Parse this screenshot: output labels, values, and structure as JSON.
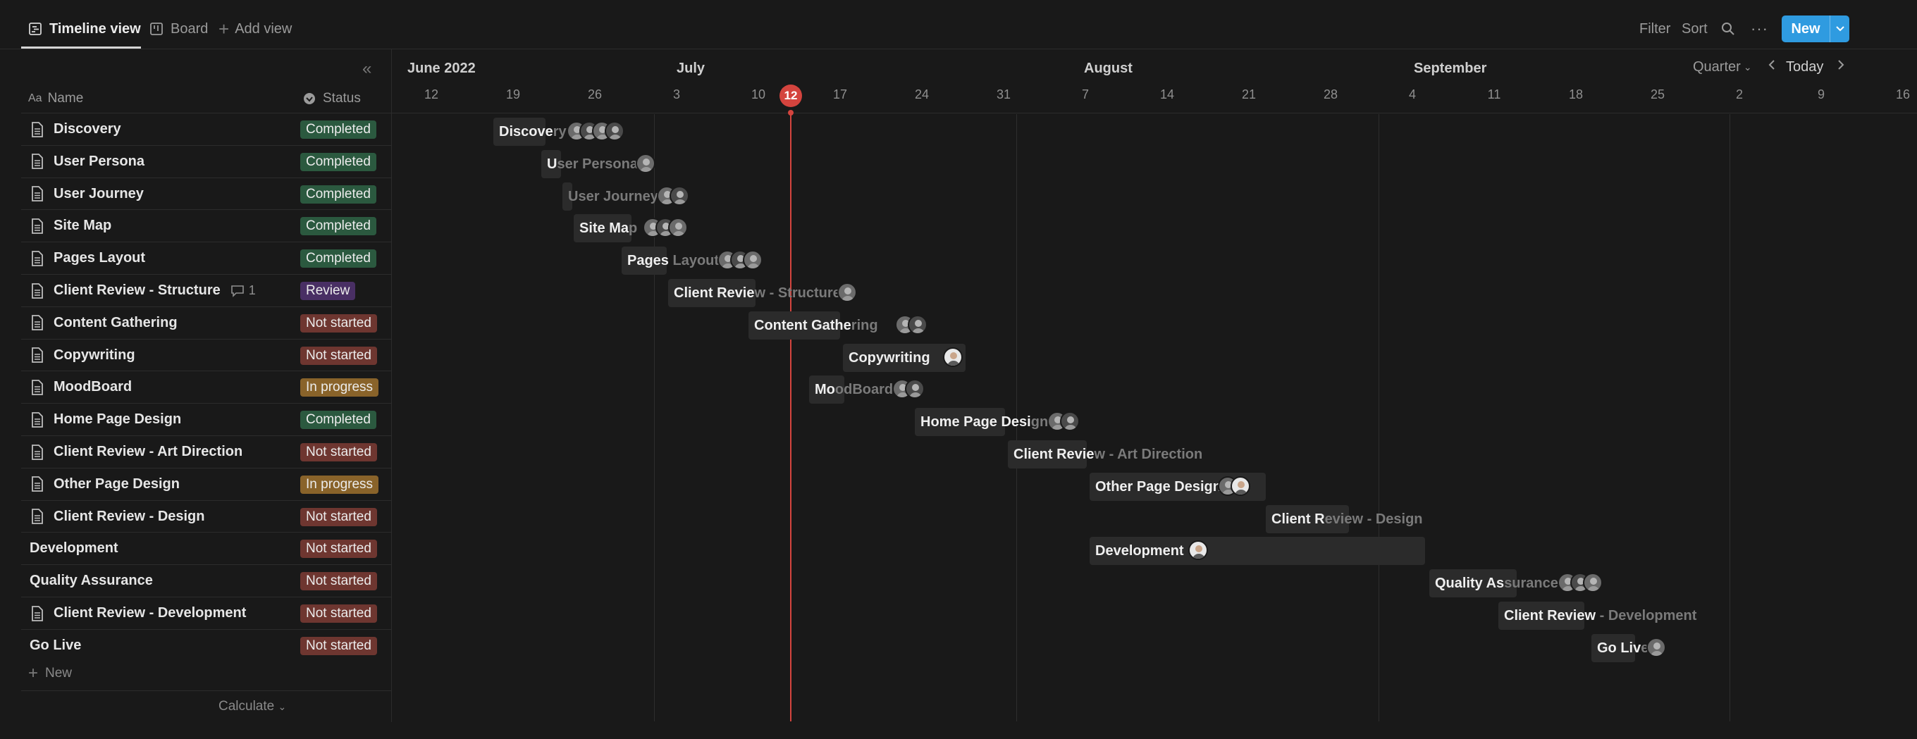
{
  "views": {
    "timeline": "Timeline view",
    "board": "Board",
    "add": "Add view"
  },
  "toolbar": {
    "filter": "Filter",
    "sort": "Sort",
    "new": "New"
  },
  "columns": {
    "name": "Name",
    "status": "Status"
  },
  "rows": [
    {
      "name": "Discovery",
      "status": "Completed",
      "doc": true
    },
    {
      "name": "User Persona",
      "status": "Completed",
      "doc": true
    },
    {
      "name": "User Journey",
      "status": "Completed",
      "doc": true
    },
    {
      "name": "Site Map",
      "status": "Completed",
      "doc": true
    },
    {
      "name": "Pages Layout",
      "status": "Completed",
      "doc": true
    },
    {
      "name": "Client Review - Structure",
      "status": "Review",
      "doc": true,
      "comments": "1"
    },
    {
      "name": "Content Gathering",
      "status": "Not started",
      "doc": true
    },
    {
      "name": "Copywriting",
      "status": "Not started",
      "doc": true
    },
    {
      "name": "MoodBoard",
      "status": "In progress",
      "doc": true
    },
    {
      "name": "Home Page Design",
      "status": "Completed",
      "doc": true
    },
    {
      "name": "Client Review - Art Direction",
      "status": "Not started",
      "doc": true
    },
    {
      "name": "Other Page Design",
      "status": "In progress",
      "doc": true
    },
    {
      "name": "Client Review - Design",
      "status": "Not started",
      "doc": true
    },
    {
      "name": "Development",
      "status": "Not started",
      "doc": false
    },
    {
      "name": "Quality Assurance",
      "status": "Not started",
      "doc": false
    },
    {
      "name": "Client Review - Development",
      "status": "Not started",
      "doc": true
    },
    {
      "name": "Go Live",
      "status": "Not started",
      "doc": false
    }
  ],
  "footer": {
    "new": "New",
    "calculate": "Calculate"
  },
  "timeline": {
    "months": [
      "June 2022",
      "July",
      "August",
      "September"
    ],
    "days": [
      "12",
      "19",
      "26",
      "3",
      "10",
      "12",
      "17",
      "24",
      "31",
      "7",
      "14",
      "21",
      "28",
      "4",
      "11",
      "18",
      "25",
      "2",
      "9",
      "16"
    ],
    "today_day": "12",
    "zoom": "Quarter",
    "today_label": "Today",
    "bars": [
      {
        "label_a": "Discove",
        "label_b": "ry",
        "avatars": 4
      },
      {
        "label_a": "U",
        "label_b": "ser Persona",
        "avatars": 1
      },
      {
        "label_a": "",
        "label_b": "User Journey",
        "avatars": 2
      },
      {
        "label_a": "Site Ma",
        "label_b": "p",
        "avatars": 3
      },
      {
        "label_a": "Pages ",
        "label_b": "Layout",
        "avatars": 3
      },
      {
        "label_a": "Client Revie",
        "label_b": "w - Structure",
        "avatars": 1
      },
      {
        "label_a": "Content Gathe",
        "label_b": "ring",
        "avatars": 2
      },
      {
        "label_a": "Copywriting",
        "label_b": "",
        "avatars": 1
      },
      {
        "label_a": "Mo",
        "label_b": "odBoard",
        "avatars": 2
      },
      {
        "label_a": "Home Page Desi",
        "label_b": "gn",
        "avatars": 2
      },
      {
        "label_a": "Client Revie",
        "label_b": "w - Art Direction",
        "avatars": 0
      },
      {
        "label_a": "Other Page Design",
        "label_b": "",
        "avatars": 2
      },
      {
        "label_a": "Client R",
        "label_b": "eview - Design",
        "avatars": 0
      },
      {
        "label_a": "Development",
        "label_b": "",
        "avatars": 1
      },
      {
        "label_a": "Quality As",
        "label_b": "surance",
        "avatars": 3
      },
      {
        "label_a": "Client Review",
        "label_b": " - Development",
        "avatars": 0
      },
      {
        "label_a": "Go Liv",
        "label_b": "e",
        "avatars": 1
      }
    ]
  },
  "colors": {
    "completed": "#2b593f",
    "review": "#492f64",
    "not_started": "#6e3630",
    "in_progress": "#89632a",
    "today": "#d4443e",
    "accent": "#2f9be0"
  }
}
